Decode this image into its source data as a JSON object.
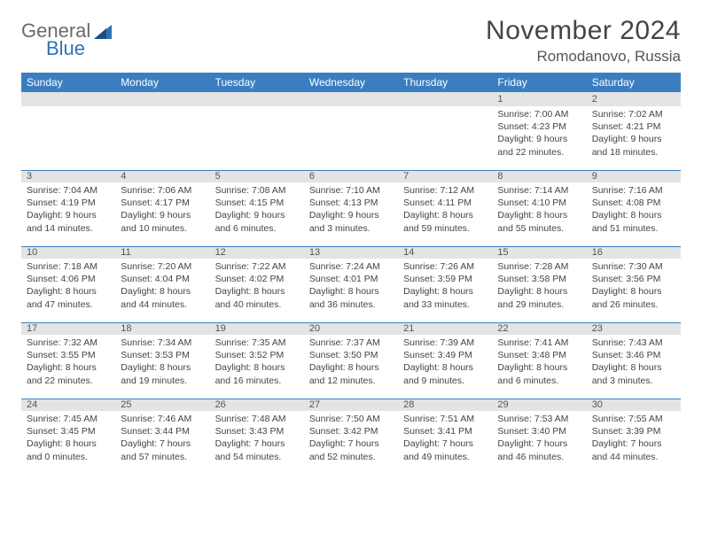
{
  "brand": {
    "name1": "General",
    "name2": "Blue"
  },
  "title": "November 2024",
  "location": "Romodanovo, Russia",
  "colors": {
    "header_bg": "#3a7ec1",
    "header_text": "#ffffff",
    "daybar_bg": "#e4e4e4",
    "text": "#444444",
    "logo_gray": "#6b6b6b",
    "logo_blue": "#2f72b8"
  },
  "weekdays": [
    "Sunday",
    "Monday",
    "Tuesday",
    "Wednesday",
    "Thursday",
    "Friday",
    "Saturday"
  ],
  "weeks": [
    {
      "nums": [
        "",
        "",
        "",
        "",
        "",
        "1",
        "2"
      ],
      "cells": [
        null,
        null,
        null,
        null,
        null,
        {
          "sunrise": "Sunrise: 7:00 AM",
          "sunset": "Sunset: 4:23 PM",
          "day1": "Daylight: 9 hours",
          "day2": "and 22 minutes."
        },
        {
          "sunrise": "Sunrise: 7:02 AM",
          "sunset": "Sunset: 4:21 PM",
          "day1": "Daylight: 9 hours",
          "day2": "and 18 minutes."
        }
      ]
    },
    {
      "nums": [
        "3",
        "4",
        "5",
        "6",
        "7",
        "8",
        "9"
      ],
      "cells": [
        {
          "sunrise": "Sunrise: 7:04 AM",
          "sunset": "Sunset: 4:19 PM",
          "day1": "Daylight: 9 hours",
          "day2": "and 14 minutes."
        },
        {
          "sunrise": "Sunrise: 7:06 AM",
          "sunset": "Sunset: 4:17 PM",
          "day1": "Daylight: 9 hours",
          "day2": "and 10 minutes."
        },
        {
          "sunrise": "Sunrise: 7:08 AM",
          "sunset": "Sunset: 4:15 PM",
          "day1": "Daylight: 9 hours",
          "day2": "and 6 minutes."
        },
        {
          "sunrise": "Sunrise: 7:10 AM",
          "sunset": "Sunset: 4:13 PM",
          "day1": "Daylight: 9 hours",
          "day2": "and 3 minutes."
        },
        {
          "sunrise": "Sunrise: 7:12 AM",
          "sunset": "Sunset: 4:11 PM",
          "day1": "Daylight: 8 hours",
          "day2": "and 59 minutes."
        },
        {
          "sunrise": "Sunrise: 7:14 AM",
          "sunset": "Sunset: 4:10 PM",
          "day1": "Daylight: 8 hours",
          "day2": "and 55 minutes."
        },
        {
          "sunrise": "Sunrise: 7:16 AM",
          "sunset": "Sunset: 4:08 PM",
          "day1": "Daylight: 8 hours",
          "day2": "and 51 minutes."
        }
      ]
    },
    {
      "nums": [
        "10",
        "11",
        "12",
        "13",
        "14",
        "15",
        "16"
      ],
      "cells": [
        {
          "sunrise": "Sunrise: 7:18 AM",
          "sunset": "Sunset: 4:06 PM",
          "day1": "Daylight: 8 hours",
          "day2": "and 47 minutes."
        },
        {
          "sunrise": "Sunrise: 7:20 AM",
          "sunset": "Sunset: 4:04 PM",
          "day1": "Daylight: 8 hours",
          "day2": "and 44 minutes."
        },
        {
          "sunrise": "Sunrise: 7:22 AM",
          "sunset": "Sunset: 4:02 PM",
          "day1": "Daylight: 8 hours",
          "day2": "and 40 minutes."
        },
        {
          "sunrise": "Sunrise: 7:24 AM",
          "sunset": "Sunset: 4:01 PM",
          "day1": "Daylight: 8 hours",
          "day2": "and 36 minutes."
        },
        {
          "sunrise": "Sunrise: 7:26 AM",
          "sunset": "Sunset: 3:59 PM",
          "day1": "Daylight: 8 hours",
          "day2": "and 33 minutes."
        },
        {
          "sunrise": "Sunrise: 7:28 AM",
          "sunset": "Sunset: 3:58 PM",
          "day1": "Daylight: 8 hours",
          "day2": "and 29 minutes."
        },
        {
          "sunrise": "Sunrise: 7:30 AM",
          "sunset": "Sunset: 3:56 PM",
          "day1": "Daylight: 8 hours",
          "day2": "and 26 minutes."
        }
      ]
    },
    {
      "nums": [
        "17",
        "18",
        "19",
        "20",
        "21",
        "22",
        "23"
      ],
      "cells": [
        {
          "sunrise": "Sunrise: 7:32 AM",
          "sunset": "Sunset: 3:55 PM",
          "day1": "Daylight: 8 hours",
          "day2": "and 22 minutes."
        },
        {
          "sunrise": "Sunrise: 7:34 AM",
          "sunset": "Sunset: 3:53 PM",
          "day1": "Daylight: 8 hours",
          "day2": "and 19 minutes."
        },
        {
          "sunrise": "Sunrise: 7:35 AM",
          "sunset": "Sunset: 3:52 PM",
          "day1": "Daylight: 8 hours",
          "day2": "and 16 minutes."
        },
        {
          "sunrise": "Sunrise: 7:37 AM",
          "sunset": "Sunset: 3:50 PM",
          "day1": "Daylight: 8 hours",
          "day2": "and 12 minutes."
        },
        {
          "sunrise": "Sunrise: 7:39 AM",
          "sunset": "Sunset: 3:49 PM",
          "day1": "Daylight: 8 hours",
          "day2": "and 9 minutes."
        },
        {
          "sunrise": "Sunrise: 7:41 AM",
          "sunset": "Sunset: 3:48 PM",
          "day1": "Daylight: 8 hours",
          "day2": "and 6 minutes."
        },
        {
          "sunrise": "Sunrise: 7:43 AM",
          "sunset": "Sunset: 3:46 PM",
          "day1": "Daylight: 8 hours",
          "day2": "and 3 minutes."
        }
      ]
    },
    {
      "nums": [
        "24",
        "25",
        "26",
        "27",
        "28",
        "29",
        "30"
      ],
      "cells": [
        {
          "sunrise": "Sunrise: 7:45 AM",
          "sunset": "Sunset: 3:45 PM",
          "day1": "Daylight: 8 hours",
          "day2": "and 0 minutes."
        },
        {
          "sunrise": "Sunrise: 7:46 AM",
          "sunset": "Sunset: 3:44 PM",
          "day1": "Daylight: 7 hours",
          "day2": "and 57 minutes."
        },
        {
          "sunrise": "Sunrise: 7:48 AM",
          "sunset": "Sunset: 3:43 PM",
          "day1": "Daylight: 7 hours",
          "day2": "and 54 minutes."
        },
        {
          "sunrise": "Sunrise: 7:50 AM",
          "sunset": "Sunset: 3:42 PM",
          "day1": "Daylight: 7 hours",
          "day2": "and 52 minutes."
        },
        {
          "sunrise": "Sunrise: 7:51 AM",
          "sunset": "Sunset: 3:41 PM",
          "day1": "Daylight: 7 hours",
          "day2": "and 49 minutes."
        },
        {
          "sunrise": "Sunrise: 7:53 AM",
          "sunset": "Sunset: 3:40 PM",
          "day1": "Daylight: 7 hours",
          "day2": "and 46 minutes."
        },
        {
          "sunrise": "Sunrise: 7:55 AM",
          "sunset": "Sunset: 3:39 PM",
          "day1": "Daylight: 7 hours",
          "day2": "and 44 minutes."
        }
      ]
    }
  ]
}
